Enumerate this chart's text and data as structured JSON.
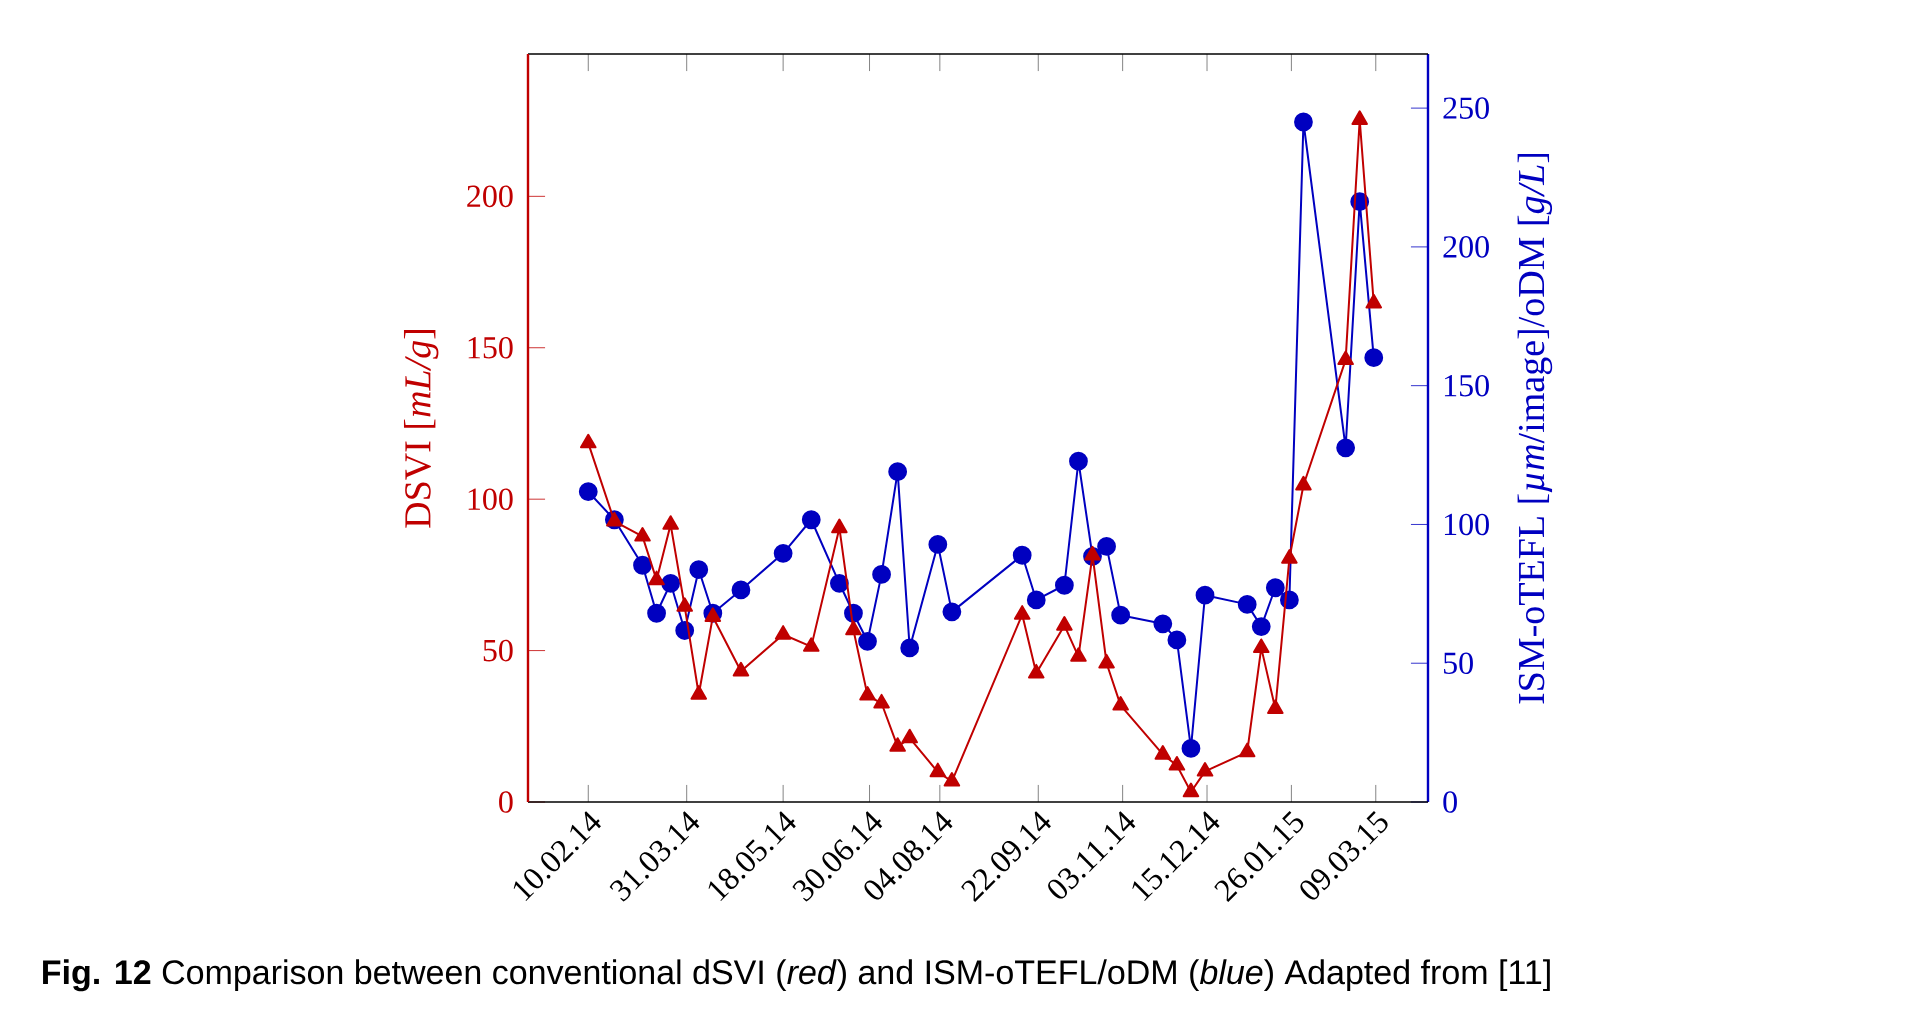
{
  "chart_data": {
    "type": "line",
    "ylabel": "DSVI [*mL/g*]",
    "y2label": "ISM-oTEFL [*µm*/image]/oDM [*g/L*]",
    "annotations": [
      "**Fig. 12** Comparison between conventional dSVI (*red*) and ISM-oTEFL/oDM (*blue*) Adapted from [11]"
    ],
    "x": [
      "2014-02-10",
      "2014-02-23",
      "2014-03-09",
      "2014-03-16",
      "2014-03-23",
      "2014-03-30",
      "2014-04-06",
      "2014-04-13",
      "2014-04-27",
      "2014-05-18",
      "2014-06-01",
      "2014-06-15",
      "2014-06-22",
      "2014-06-29",
      "2014-07-06",
      "2014-07-14",
      "2014-07-20",
      "2014-08-03",
      "2014-08-10",
      "2014-09-14",
      "2014-09-21",
      "2014-10-05",
      "2014-10-12",
      "2014-10-19",
      "2014-10-26",
      "2014-11-02",
      "2014-11-23",
      "2014-11-30",
      "2014-12-07",
      "2014-12-14",
      "2015-01-04",
      "2015-01-11",
      "2015-01-18",
      "2015-01-25",
      "2015-02-01",
      "2015-02-22",
      "2015-03-01",
      "2015-03-08"
    ],
    "series": [
      {
        "color": "#c00000",
        "marker": "triangle",
        "line_style": "solid",
        "values": [
          118.5,
          92.7,
          87.7,
          73.3,
          91.6,
          64.5,
          35.5,
          61.2,
          43.2,
          55.3,
          51.3,
          90.5,
          56.8,
          35.2,
          32.6,
          18.3,
          21.1,
          9.9,
          6.8,
          61.9,
          42.5,
          58.3,
          48.0,
          81.5,
          45.8,
          31.9,
          15.7,
          12.1,
          3.3,
          10.1,
          16.5,
          50.9,
          30.8,
          80.4,
          104.6,
          146,
          225.3,
          164.7
        ]
      },
      {
        "color": "#0000c0",
        "marker": "circle",
        "line_style": "solid",
        "axis": "y2",
        "values": [
          111.8,
          101.7,
          85.3,
          68.0,
          78.8,
          61.8,
          83.7,
          68.0,
          76.4,
          89.6,
          101.7,
          78.8,
          68.0,
          57.9,
          82.0,
          119.0,
          55.5,
          92.8,
          68.5,
          88.9,
          72.8,
          78.1,
          122.8,
          88.5,
          92.1,
          67.3,
          64.2,
          58.4,
          19.3,
          74.5,
          71.2,
          63.2,
          77.2,
          72.8,
          245.0,
          127.6,
          216.3,
          160.1
        ]
      }
    ],
    "xlim": [
      "2014-01-11",
      "2015-04-04"
    ],
    "xticks": [
      {
        "value": "2014-02-10",
        "label": "10.02.14"
      },
      {
        "value": "2014-03-31",
        "label": "31.03.14"
      },
      {
        "value": "2014-05-18",
        "label": "18.05.14"
      },
      {
        "value": "2014-06-30",
        "label": "30.06.14"
      },
      {
        "value": "2014-08-04",
        "label": "04.08.14"
      },
      {
        "value": "2014-09-22",
        "label": "22.09.14"
      },
      {
        "value": "2014-11-03",
        "label": "03.11.14"
      },
      {
        "value": "2014-12-15",
        "label": "15.12.14"
      },
      {
        "value": "2015-01-26",
        "label": "26.01.15"
      },
      {
        "value": "2015-03-09",
        "label": "09.03.15"
      }
    ],
    "ylim": [
      0,
      247
    ],
    "yticks": [
      0,
      50,
      100,
      150,
      200
    ],
    "y2lim": [
      0,
      269.5
    ],
    "y2ticks": [
      0,
      50,
      100,
      150,
      200,
      250
    ]
  }
}
